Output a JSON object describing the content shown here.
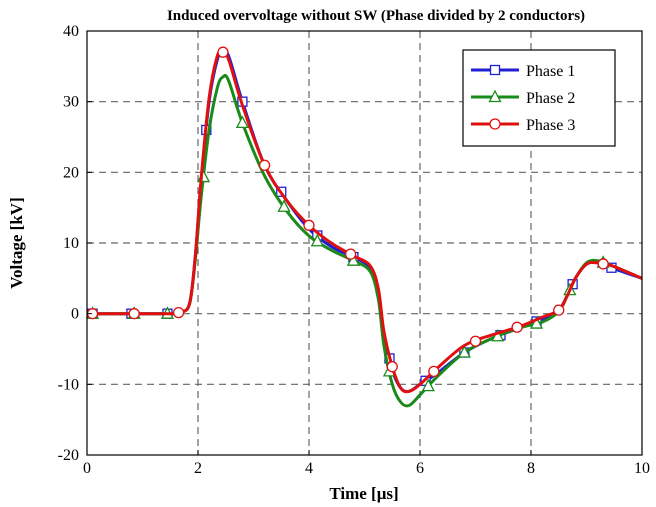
{
  "chart_data": {
    "type": "line",
    "title": "Induced overvoltage without SW (Phase divided by 2 conductors)",
    "xlabel": "Time [μs]",
    "ylabel": "Voltage [kV]",
    "xlim": [
      0,
      10
    ],
    "ylim": [
      -20,
      40
    ],
    "xticks": [
      0,
      2,
      4,
      6,
      8,
      10
    ],
    "yticks": [
      -20,
      -10,
      0,
      10,
      20,
      30,
      40
    ],
    "grid": true,
    "legend_position": "top-right",
    "series": [
      {
        "name": "Phase 1",
        "color": "#1f1fd6",
        "marker": "square",
        "x": [
          0,
          1.5,
          1.7,
          1.85,
          1.95,
          2.05,
          2.2,
          2.35,
          2.45,
          2.55,
          2.8,
          3.2,
          3.6,
          4.0,
          4.4,
          4.8,
          5.1,
          5.25,
          5.35,
          5.5,
          5.65,
          5.8,
          6.0,
          6.3,
          6.8,
          7.3,
          7.8,
          8.2,
          8.5,
          8.65,
          8.8,
          9.0,
          9.2,
          9.45,
          9.7,
          10.0
        ],
        "y": [
          0,
          0,
          0.2,
          1.5,
          8,
          18,
          30,
          36,
          37,
          36.5,
          30,
          21,
          16,
          12,
          9.5,
          8,
          6.5,
          3,
          -3,
          -8,
          -10.5,
          -11,
          -10,
          -8.5,
          -5.5,
          -3.5,
          -2,
          -0.8,
          0.5,
          2.5,
          5,
          7,
          7.2,
          6.5,
          5.8,
          5
        ]
      },
      {
        "name": "Phase 2",
        "color": "#1a8a1a",
        "marker": "triangle",
        "x": [
          0,
          1.5,
          1.7,
          1.85,
          1.95,
          2.05,
          2.2,
          2.35,
          2.45,
          2.55,
          2.8,
          3.2,
          3.6,
          4.0,
          4.4,
          4.8,
          5.1,
          5.25,
          5.35,
          5.5,
          5.65,
          5.8,
          6.0,
          6.3,
          6.8,
          7.3,
          7.8,
          8.2,
          8.5,
          8.65,
          8.8,
          9.0,
          9.2,
          9.45,
          9.7,
          10.0
        ],
        "y": [
          0,
          0,
          0.2,
          1.5,
          7.5,
          16,
          26,
          32,
          33.5,
          33,
          27,
          19.5,
          14.5,
          11,
          9,
          7.5,
          6,
          2,
          -4.5,
          -10,
          -12.5,
          -13,
          -11.5,
          -9,
          -5.5,
          -3.5,
          -2,
          -1.2,
          0.3,
          2.5,
          5,
          7.2,
          7.5,
          6.8,
          6,
          5
        ]
      },
      {
        "name": "Phase 3",
        "color": "#e01010",
        "marker": "circle",
        "x": [
          0,
          1.5,
          1.7,
          1.85,
          1.95,
          2.05,
          2.2,
          2.35,
          2.45,
          2.55,
          2.8,
          3.2,
          3.6,
          4.0,
          4.4,
          4.8,
          5.1,
          5.25,
          5.35,
          5.5,
          5.65,
          5.8,
          6.0,
          6.3,
          6.8,
          7.3,
          7.8,
          8.2,
          8.5,
          8.65,
          8.8,
          9.0,
          9.2,
          9.45,
          9.7,
          10.0
        ],
        "y": [
          0,
          0,
          0.2,
          1.5,
          8,
          18.5,
          30.5,
          36.5,
          37,
          36,
          29.5,
          21,
          16,
          12.5,
          10,
          8.2,
          6.8,
          3.5,
          -2.5,
          -7.5,
          -10.5,
          -11,
          -10,
          -7.8,
          -4.5,
          -3,
          -1.8,
          -0.5,
          0.5,
          2.5,
          5,
          7,
          7.2,
          6.8,
          6,
          5
        ]
      }
    ]
  }
}
